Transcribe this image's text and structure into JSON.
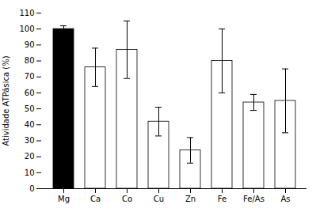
{
  "chart_data": {
    "type": "bar",
    "categories": [
      "Mg",
      "Ca",
      "Co",
      "Cu",
      "Zn",
      "Fe",
      "Fe/As",
      "As"
    ],
    "values": [
      100,
      76,
      87,
      42,
      24,
      80,
      54,
      55
    ],
    "errors": [
      2,
      12,
      18,
      9,
      8,
      20,
      5,
      20
    ],
    "colors": [
      "black",
      "white",
      "white",
      "white",
      "white",
      "white",
      "white",
      "white"
    ],
    "ylabel": "Atividade ATPásica (%)",
    "ylim": [
      0,
      110
    ],
    "yticks": [
      0,
      10,
      20,
      30,
      40,
      50,
      60,
      70,
      80,
      90,
      100,
      110
    ],
    "grid": false
  }
}
